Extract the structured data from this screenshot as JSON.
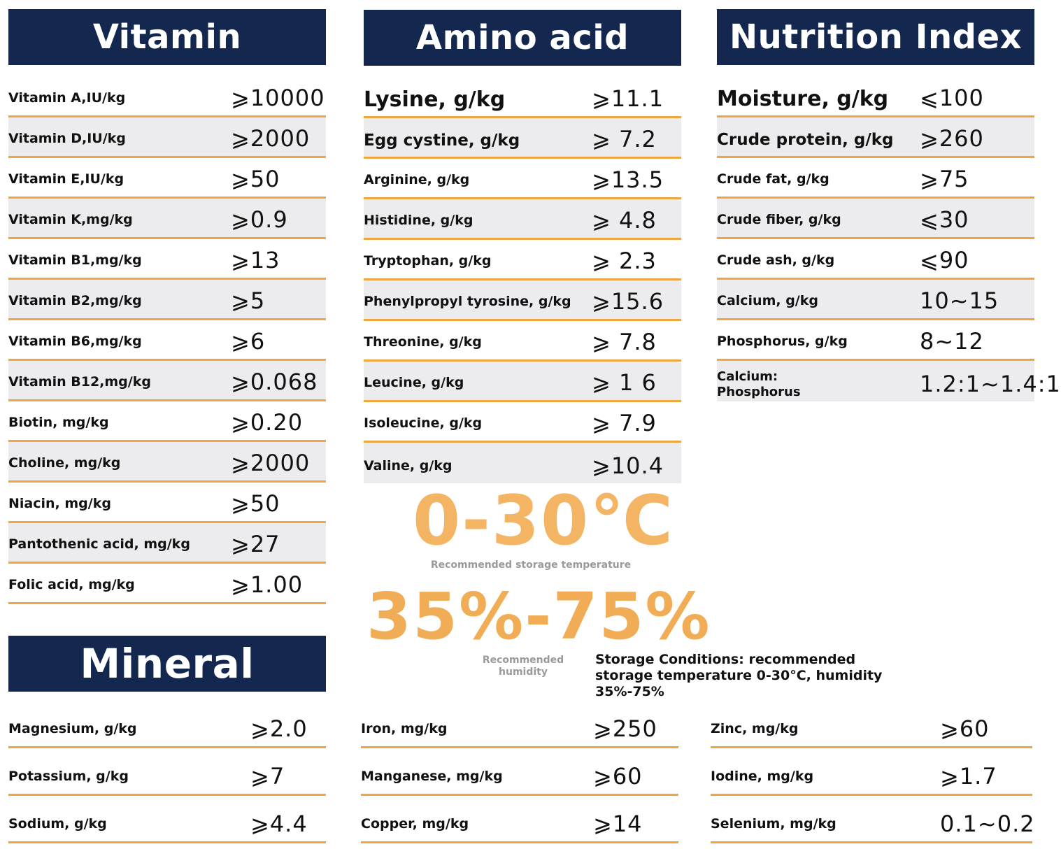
{
  "vitamin": {
    "title": "Vitamin",
    "rows": [
      {
        "label": "Vitamin A,IU/kg",
        "value": "⩾10000"
      },
      {
        "label": "Vitamin D,IU/kg",
        "value": "⩾2000"
      },
      {
        "label": "Vitamin E,IU/kg",
        "value": "⩾50"
      },
      {
        "label": "Vitamin K,mg/kg",
        "value": "⩾0.9"
      },
      {
        "label": "Vitamin B1,mg/kg",
        "value": "⩾13"
      },
      {
        "label": "Vitamin B2,mg/kg",
        "value": "⩾5"
      },
      {
        "label": "Vitamin B6,mg/kg",
        "value": "⩾6"
      },
      {
        "label": "Vitamin B12,mg/kg",
        "value": "⩾0.068"
      },
      {
        "label": "Biotin, mg/kg",
        "value": "⩾0.20"
      },
      {
        "label": "Choline, mg/kg",
        "value": "⩾2000"
      },
      {
        "label": "Niacin, mg/kg",
        "value": "⩾50"
      },
      {
        "label": "Pantothenic acid, mg/kg",
        "value": "⩾27"
      },
      {
        "label": "Folic acid, mg/kg",
        "value": "⩾1.00"
      }
    ]
  },
  "amino": {
    "title": "Amino acid",
    "rows": [
      {
        "label": "Lysine, g/kg",
        "value": "⩾11.1"
      },
      {
        "label": "Egg cystine, g/kg",
        "value": "⩾ 7.2"
      },
      {
        "label": "Arginine, g/kg",
        "value": "⩾13.5"
      },
      {
        "label": "Histidine, g/kg",
        "value": "⩾ 4.8"
      },
      {
        "label": "Tryptophan, g/kg",
        "value": "⩾ 2.3"
      },
      {
        "label": "Phenylpropyl tyrosine, g/kg",
        "value": "⩾15.6"
      },
      {
        "label": "Threonine, g/kg",
        "value": "⩾ 7.8"
      },
      {
        "label": "Leucine, g/kg",
        "value": "⩾ 1 6"
      },
      {
        "label": "Isoleucine, g/kg",
        "value": "⩾ 7.9"
      },
      {
        "label": "Valine, g/kg",
        "value": "⩾10.4"
      }
    ]
  },
  "nutrition": {
    "title": "Nutrition Index",
    "rows": [
      {
        "label": "Moisture, g/kg",
        "value": "⩽100"
      },
      {
        "label": "Crude protein, g/kg",
        "value": "⩾260"
      },
      {
        "label": "Crude fat, g/kg",
        "value": "⩾75"
      },
      {
        "label": "Crude fiber, g/kg",
        "value": "⩽30"
      },
      {
        "label": "Crude ash, g/kg",
        "value": "⩽90"
      },
      {
        "label": "Calcium, g/kg",
        "value": "10~15"
      },
      {
        "label": "Phosphorus, g/kg",
        "value": "8~12"
      },
      {
        "label": "Calcium:\nPhosphorus",
        "value": "1.2:1~1.4:1"
      }
    ]
  },
  "mineral": {
    "title": "Mineral",
    "col1": [
      {
        "label": "Magnesium, g/kg",
        "value": "⩾2.0"
      },
      {
        "label": "Potassium, g/kg",
        "value": "⩾7"
      },
      {
        "label": "Sodium, g/kg",
        "value": "⩾4.4"
      }
    ],
    "col2": [
      {
        "label": "Iron, mg/kg",
        "value": "⩾250"
      },
      {
        "label": "Manganese, mg/kg",
        "value": "⩾60"
      },
      {
        "label": "Copper, mg/kg",
        "value": "⩾14"
      }
    ],
    "col3": [
      {
        "label": "Zinc, mg/kg",
        "value": "⩾60"
      },
      {
        "label": "Iodine, mg/kg",
        "value": "⩾1.7"
      },
      {
        "label": "Selenium, mg/kg",
        "value": "0.1~0.2"
      }
    ]
  },
  "storage": {
    "temperature": "0-30℃",
    "temperature_caption": "Recommended storage temperature",
    "humidity": "35%-75%",
    "humidity_caption": "Recommended humidity",
    "note": "Storage Conditions: recommended storage temperature 0-30°C, humidity 35%-75%"
  },
  "colors": {
    "header_bg": "#13274f",
    "divider": "#f0a640",
    "row_alt": "#ececee",
    "accent": "#f0ad55"
  }
}
